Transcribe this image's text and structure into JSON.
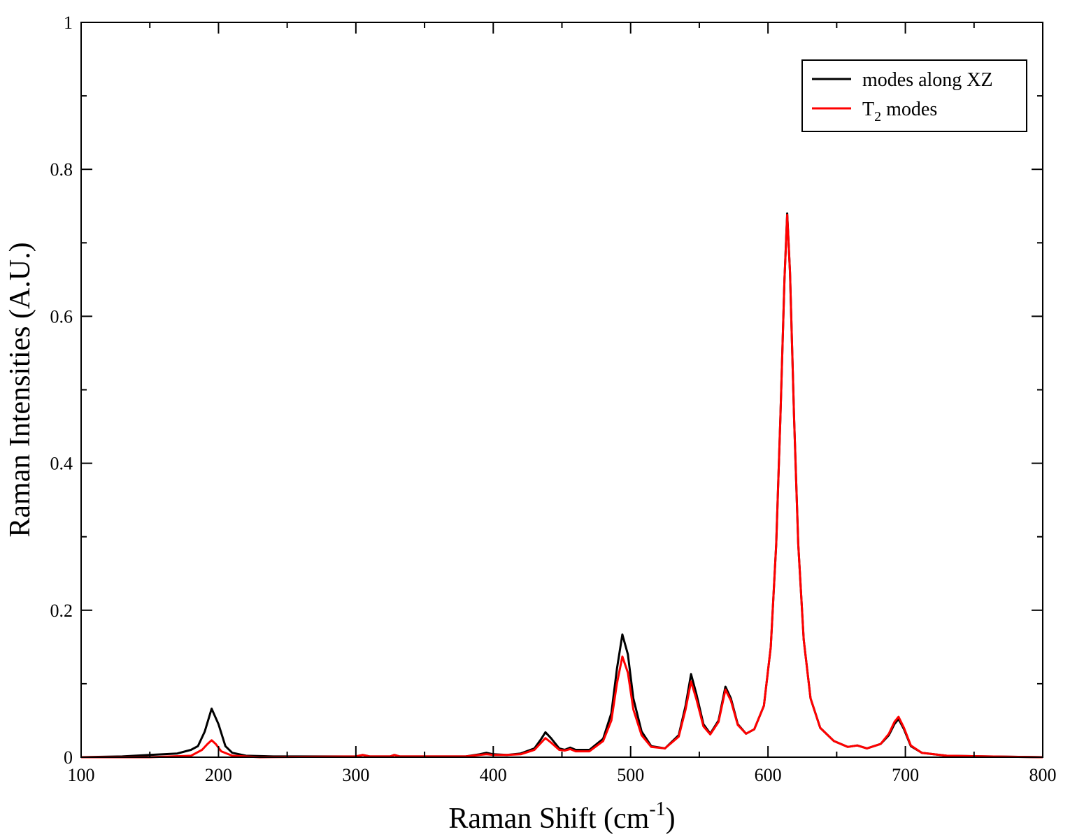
{
  "chart_data": {
    "type": "line",
    "xlabel": {
      "main": "Raman Shift (cm",
      "sup": "-1",
      "end": ")"
    },
    "ylabel": "Raman Intensities (A.U.)",
    "xlim": [
      100,
      800
    ],
    "ylim": [
      0,
      1
    ],
    "x_ticks": [
      "100",
      "200",
      "300",
      "400",
      "500",
      "600",
      "700",
      "800"
    ],
    "y_ticks": [
      "0",
      "0.2",
      "0.4",
      "0.6",
      "0.8",
      "1"
    ],
    "grid": false,
    "legend_position": "top-right",
    "legend": [
      {
        "name": "modes along XZ",
        "sub": "",
        "suffix": "",
        "color": "#000000"
      },
      {
        "name": "T",
        "sub": "2",
        "suffix": " modes",
        "color": "#ff0000"
      }
    ],
    "series": [
      {
        "name": "modes along XZ",
        "color": "#000000",
        "points": [
          [
            100,
            0.0
          ],
          [
            130,
            0.001
          ],
          [
            150,
            0.003
          ],
          [
            170,
            0.005
          ],
          [
            180,
            0.01
          ],
          [
            185,
            0.015
          ],
          [
            190,
            0.035
          ],
          [
            195,
            0.066
          ],
          [
            200,
            0.045
          ],
          [
            205,
            0.015
          ],
          [
            210,
            0.006
          ],
          [
            220,
            0.002
          ],
          [
            240,
            0.001
          ],
          [
            300,
            0.001
          ],
          [
            305,
            0.003
          ],
          [
            310,
            0.001
          ],
          [
            325,
            0.001
          ],
          [
            328,
            0.003
          ],
          [
            332,
            0.001
          ],
          [
            380,
            0.001
          ],
          [
            390,
            0.004
          ],
          [
            395,
            0.006
          ],
          [
            400,
            0.004
          ],
          [
            410,
            0.003
          ],
          [
            420,
            0.005
          ],
          [
            430,
            0.012
          ],
          [
            435,
            0.025
          ],
          [
            438,
            0.034
          ],
          [
            442,
            0.026
          ],
          [
            448,
            0.012
          ],
          [
            452,
            0.01
          ],
          [
            456,
            0.013
          ],
          [
            460,
            0.01
          ],
          [
            470,
            0.01
          ],
          [
            480,
            0.025
          ],
          [
            486,
            0.06
          ],
          [
            490,
            0.12
          ],
          [
            494,
            0.167
          ],
          [
            498,
            0.14
          ],
          [
            502,
            0.08
          ],
          [
            508,
            0.035
          ],
          [
            515,
            0.015
          ],
          [
            525,
            0.012
          ],
          [
            535,
            0.03
          ],
          [
            540,
            0.07
          ],
          [
            544,
            0.113
          ],
          [
            548,
            0.085
          ],
          [
            553,
            0.045
          ],
          [
            558,
            0.032
          ],
          [
            564,
            0.05
          ],
          [
            569,
            0.096
          ],
          [
            573,
            0.08
          ],
          [
            578,
            0.045
          ],
          [
            584,
            0.032
          ],
          [
            590,
            0.038
          ],
          [
            597,
            0.07
          ],
          [
            602,
            0.15
          ],
          [
            606,
            0.29
          ],
          [
            609,
            0.46
          ],
          [
            612,
            0.65
          ],
          [
            614,
            0.74
          ],
          [
            616,
            0.66
          ],
          [
            619,
            0.46
          ],
          [
            622,
            0.29
          ],
          [
            626,
            0.16
          ],
          [
            631,
            0.08
          ],
          [
            638,
            0.04
          ],
          [
            648,
            0.022
          ],
          [
            658,
            0.014
          ],
          [
            665,
            0.016
          ],
          [
            672,
            0.012
          ],
          [
            682,
            0.018
          ],
          [
            688,
            0.03
          ],
          [
            692,
            0.045
          ],
          [
            695,
            0.052
          ],
          [
            699,
            0.038
          ],
          [
            704,
            0.015
          ],
          [
            712,
            0.006
          ],
          [
            730,
            0.002
          ],
          [
            760,
            0.001
          ],
          [
            800,
            0.0
          ]
        ]
      },
      {
        "name": "T2 modes",
        "color": "#ff0000",
        "points": [
          [
            100,
            0.0
          ],
          [
            150,
            0.0
          ],
          [
            180,
            0.002
          ],
          [
            188,
            0.01
          ],
          [
            192,
            0.018
          ],
          [
            195,
            0.023
          ],
          [
            198,
            0.018
          ],
          [
            202,
            0.008
          ],
          [
            210,
            0.002
          ],
          [
            230,
            0.0
          ],
          [
            300,
            0.001
          ],
          [
            305,
            0.003
          ],
          [
            310,
            0.001
          ],
          [
            325,
            0.001
          ],
          [
            328,
            0.003
          ],
          [
            332,
            0.001
          ],
          [
            380,
            0.001
          ],
          [
            390,
            0.003
          ],
          [
            395,
            0.004
          ],
          [
            400,
            0.003
          ],
          [
            410,
            0.003
          ],
          [
            420,
            0.004
          ],
          [
            430,
            0.01
          ],
          [
            435,
            0.02
          ],
          [
            438,
            0.026
          ],
          [
            442,
            0.02
          ],
          [
            448,
            0.01
          ],
          [
            452,
            0.009
          ],
          [
            456,
            0.011
          ],
          [
            460,
            0.008
          ],
          [
            470,
            0.008
          ],
          [
            480,
            0.022
          ],
          [
            486,
            0.05
          ],
          [
            490,
            0.1
          ],
          [
            494,
            0.137
          ],
          [
            498,
            0.115
          ],
          [
            502,
            0.065
          ],
          [
            508,
            0.03
          ],
          [
            515,
            0.014
          ],
          [
            525,
            0.012
          ],
          [
            535,
            0.028
          ],
          [
            540,
            0.065
          ],
          [
            544,
            0.103
          ],
          [
            548,
            0.078
          ],
          [
            553,
            0.042
          ],
          [
            558,
            0.031
          ],
          [
            564,
            0.048
          ],
          [
            569,
            0.092
          ],
          [
            573,
            0.077
          ],
          [
            578,
            0.044
          ],
          [
            584,
            0.032
          ],
          [
            590,
            0.038
          ],
          [
            597,
            0.07
          ],
          [
            602,
            0.15
          ],
          [
            606,
            0.29
          ],
          [
            609,
            0.46
          ],
          [
            612,
            0.65
          ],
          [
            614,
            0.738
          ],
          [
            616,
            0.66
          ],
          [
            619,
            0.46
          ],
          [
            622,
            0.29
          ],
          [
            626,
            0.16
          ],
          [
            631,
            0.08
          ],
          [
            638,
            0.04
          ],
          [
            648,
            0.022
          ],
          [
            658,
            0.014
          ],
          [
            665,
            0.016
          ],
          [
            672,
            0.012
          ],
          [
            682,
            0.018
          ],
          [
            688,
            0.032
          ],
          [
            692,
            0.048
          ],
          [
            695,
            0.055
          ],
          [
            699,
            0.04
          ],
          [
            704,
            0.016
          ],
          [
            712,
            0.006
          ],
          [
            730,
            0.002
          ],
          [
            760,
            0.001
          ],
          [
            800,
            0.0
          ]
        ]
      }
    ]
  }
}
